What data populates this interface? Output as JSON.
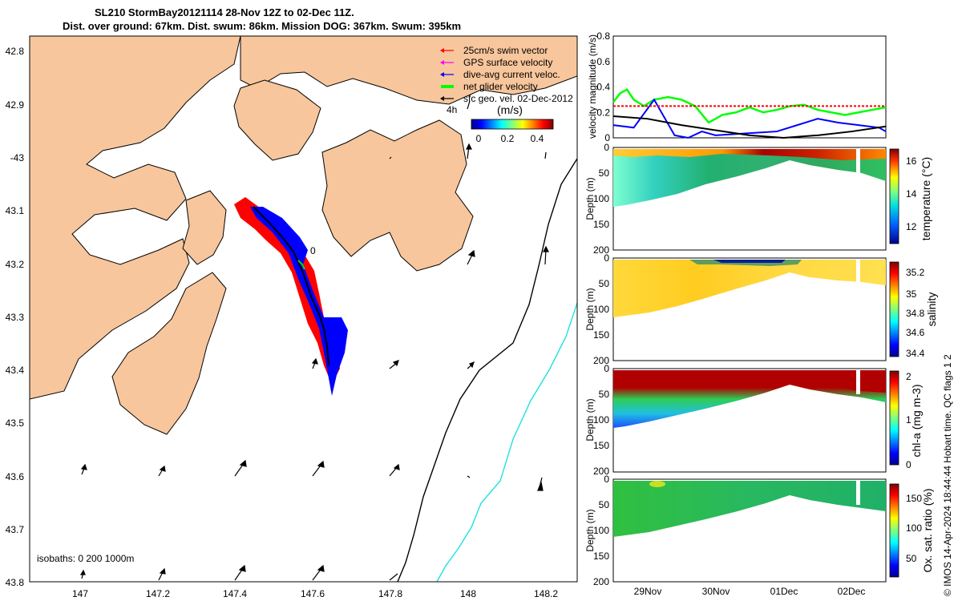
{
  "header": {
    "title_line1": "SL210 StormBay20121114 28-Nov 12Z to 02-Dec 11Z.",
    "title_line2": "Dist. over ground: 67km. Dist. swum: 86km. Mission DOG: 367km. Swum: 395km"
  },
  "colors": {
    "land": "#f8c69c",
    "water": "#ffffff",
    "track_red": "#ff0000",
    "track_blue": "#0000ff",
    "net_velocity": "#00ff00",
    "gps_velocity": "#ff00ff",
    "isobath_200": "#000000",
    "isobath_1000": "#00e5e5"
  },
  "map": {
    "lon_ticks": [
      "147",
      "147.2",
      "147.4",
      "147.6",
      "147.8",
      "148",
      "148.2"
    ],
    "lat_ticks": [
      "42.8",
      "42.9",
      "-43",
      "43.1",
      "43.2",
      "43.3",
      "43.4",
      "43.5",
      "43.6",
      "43.7",
      "43.8"
    ],
    "legend": [
      {
        "label": "25cm/s swim vector",
        "color": "#ff0000"
      },
      {
        "label": "GPS surface velocity",
        "color": "#ff00ff"
      },
      {
        "label": "dive-avg current veloc.",
        "color": "#0000ff"
      },
      {
        "label": "net glider velocity",
        "color": "#00ff00"
      },
      {
        "label": "sfc geo. vel. 02-Dec-2012",
        "color": "#000000"
      }
    ],
    "time_marker_label": "4h",
    "colorbar_unit": "(m/s)",
    "colorbar_ticks": [
      "0",
      "0.2",
      "0.4"
    ],
    "isobaths_label": "isobaths: 0   200  1000m",
    "track_marker_label": "0"
  },
  "chart_data": [
    {
      "type": "line",
      "title": "",
      "ylabel": "velocity magnitude (m/s)",
      "ylim": [
        0,
        0.8
      ],
      "y_ticks": [
        "0",
        "0.2",
        "0.4",
        "0.6",
        "0.8"
      ],
      "x_range_days": [
        0,
        4
      ],
      "series": [
        {
          "name": "net glider velocity",
          "color": "#00ff00",
          "x": [
            0,
            0.1,
            0.2,
            0.3,
            0.45,
            0.6,
            0.8,
            1.0,
            1.2,
            1.4,
            1.6,
            1.8,
            2.0,
            2.2,
            2.4,
            2.6,
            2.8,
            3.0,
            3.2,
            3.4,
            3.6,
            3.8,
            4.0
          ],
          "y": [
            0.28,
            0.35,
            0.38,
            0.3,
            0.25,
            0.3,
            0.32,
            0.3,
            0.25,
            0.12,
            0.18,
            0.2,
            0.24,
            0.2,
            0.22,
            0.25,
            0.26,
            0.22,
            0.2,
            0.18,
            0.2,
            0.22,
            0.24
          ]
        },
        {
          "name": "dive-avg current veloc.",
          "color": "#0000ff",
          "x": [
            0,
            0.3,
            0.6,
            0.9,
            1.1,
            1.3,
            1.5,
            1.8,
            2.1,
            2.4,
            2.7,
            3.0,
            3.3,
            3.6,
            3.9,
            4.0
          ],
          "y": [
            0.1,
            0.08,
            0.3,
            0.02,
            0.0,
            0.05,
            0.02,
            0.03,
            0.04,
            0.05,
            0.1,
            0.15,
            0.12,
            0.1,
            0.08,
            0.05
          ]
        },
        {
          "name": "sfc geo. vel.",
          "color": "#000000",
          "x": [
            0,
            0.5,
            1.0,
            1.5,
            2.0,
            2.5,
            3.0,
            3.5,
            4.0
          ],
          "y": [
            0.17,
            0.15,
            0.1,
            0.06,
            0.02,
            0.0,
            0.02,
            0.05,
            0.09
          ]
        },
        {
          "name": "25cm/s swim vector",
          "color": "#ff0000",
          "x": [
            0,
            4
          ],
          "y": [
            0.25,
            0.25
          ]
        }
      ]
    },
    {
      "type": "heatmap",
      "variable": "temperature",
      "ylabel": "Depth (m)",
      "ylim": [
        200,
        0
      ],
      "y_ticks": [
        "0",
        "50",
        "100",
        "150",
        "200"
      ],
      "colorbar_label": "temperature (°C)",
      "colorbar_range": [
        10.8,
        16.8
      ],
      "colorbar_ticks": [
        "12",
        "14",
        "16"
      ]
    },
    {
      "type": "heatmap",
      "variable": "salinity",
      "ylabel": "Depth (m)",
      "ylim": [
        200,
        0
      ],
      "y_ticks": [
        "0",
        "50",
        "100",
        "150",
        "200"
      ],
      "colorbar_label": "salinity",
      "colorbar_range": [
        34.35,
        35.3
      ],
      "colorbar_ticks": [
        "34.4",
        "34.6",
        "34.8",
        "35",
        "35.2"
      ]
    },
    {
      "type": "heatmap",
      "variable": "chl-a",
      "ylabel": "Depth (m)",
      "ylim": [
        200,
        0
      ],
      "y_ticks": [
        "0",
        "50",
        "100",
        "150",
        "200"
      ],
      "colorbar_label": "chl-a (mg m-3)",
      "colorbar_range": [
        0,
        2
      ],
      "colorbar_ticks": [
        "0",
        "1",
        "2"
      ]
    },
    {
      "type": "heatmap",
      "variable": "oxygen saturation",
      "ylabel": "Depth (m)",
      "ylim": [
        200,
        0
      ],
      "y_ticks": [
        "0",
        "50",
        "100",
        "150",
        "200"
      ],
      "colorbar_label": "Ox. sat. ratio (%)",
      "colorbar_range": [
        20,
        175
      ],
      "colorbar_ticks": [
        "50",
        "100",
        "150"
      ],
      "x_ticks": [
        "29Nov",
        "30Nov",
        "01Dec",
        "02Dec"
      ]
    }
  ],
  "credit": "© IMOS 14-Apr-2024 18:44:44 Hobart time. QC flags 1  2"
}
